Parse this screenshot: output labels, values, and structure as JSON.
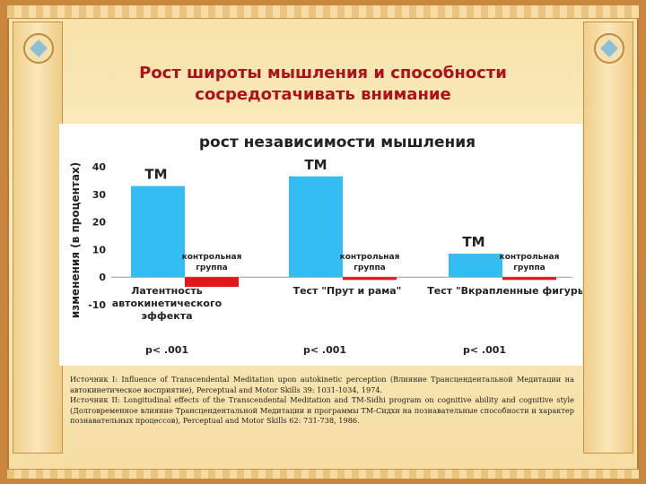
{
  "slide": {
    "title_line1": "Рост широты мышления и способности",
    "title_line2": "сосредотачивать внимание"
  },
  "chart_data": {
    "type": "bar",
    "title": "рост независимости мышления",
    "ylabel": "изменения (в процентах)",
    "ylim": [
      -10,
      40
    ],
    "yticks": [
      -10,
      0,
      10,
      20,
      30,
      40
    ],
    "groups": [
      {
        "label_lines": [
          "Латентность",
          "автокинетического",
          "эффекта"
        ],
        "p_value": "p< .001"
      },
      {
        "label_lines": [
          "Тест \"Прут и рама\""
        ],
        "p_value": "p< .001"
      },
      {
        "label_lines": [
          "Тест \"Вкрапленные фигуры"
        ],
        "p_value": "p< .001"
      }
    ],
    "series": [
      {
        "name": "ТМ",
        "color": "#33bdf2",
        "values": [
          33,
          36.5,
          8.5
        ]
      },
      {
        "name": "контрольная группа",
        "color": "#e0181c",
        "values": [
          -3.5,
          -1,
          -1
        ]
      }
    ],
    "series_labels": {
      "tm": "ТМ",
      "control_line1": "контрольная",
      "control_line2": "группа"
    }
  },
  "sources": {
    "line1": "Источник I: Influence of Transcendental Meditation upon autokinetic perception (Влияние Трансцендентальной Медитации на автокинетическое восприятие), Perceptual and Motor Skills 39: 1031-1034, 1974.",
    "line2": "Источник II: Longitudinal effects of the Transcendental Meditation and TM-Sidhi program on cognitive ability and cognitive style (Долговременное влияние Трансцендентальной Медитации и программы ТМ-Сидхи на познавательные способности и характер познавательных процессов), Perceptual and Motor Skills 62: 731-738, 1986."
  }
}
